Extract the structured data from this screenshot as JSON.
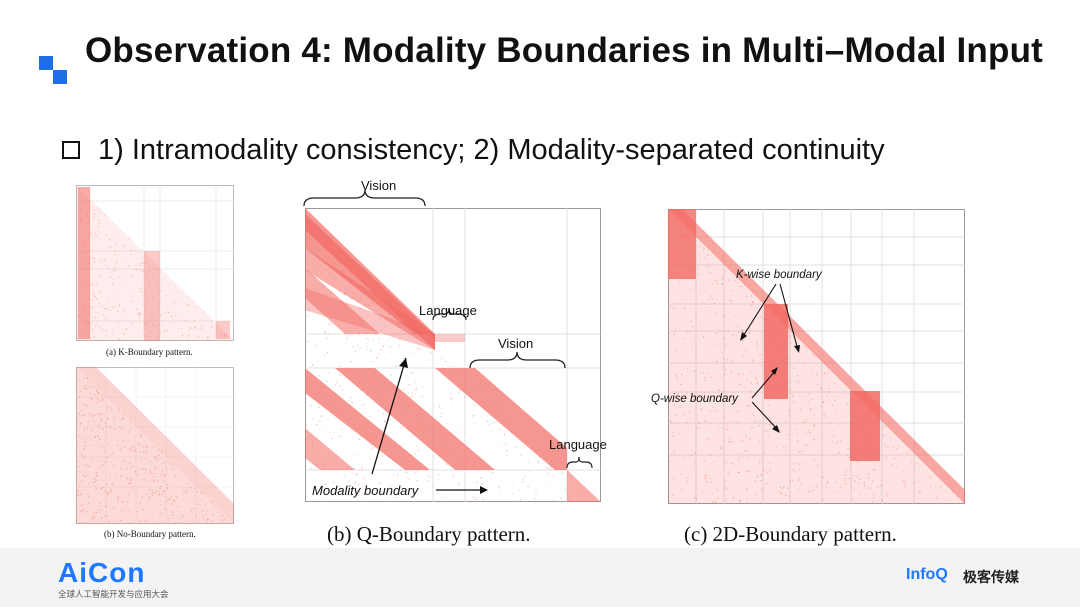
{
  "slide": {
    "title": "Observation 4: Modality Boundaries in Multi–Modal Input",
    "bullet": "1) Intramodality consistency; 2) Modality-separated continuity"
  },
  "figures": {
    "a": {
      "caption": "(a) K-Boundary pattern."
    },
    "nb": {
      "caption": "(b) No-Boundary pattern."
    },
    "b": {
      "caption": "(b) Q-Boundary pattern.",
      "labels": {
        "vision_top": "Vision",
        "language_1": "Language",
        "vision_mid": "Vision",
        "language_2": "Language",
        "modality_boundary": "Modality boundary"
      }
    },
    "c": {
      "caption": "(c) 2D-Boundary pattern.",
      "labels": {
        "k_boundary": "K-wise boundary",
        "q_boundary": "Q-wise boundary"
      }
    }
  },
  "footer": {
    "aicon_logo": "AiCon",
    "aicon_sub": "全球人工智能开发与应用大会",
    "infoq_logo": "InfoQ",
    "geek_logo": "极客传媒"
  },
  "colors": {
    "accent": "#1e6fe6",
    "heat": "#f26a63"
  }
}
